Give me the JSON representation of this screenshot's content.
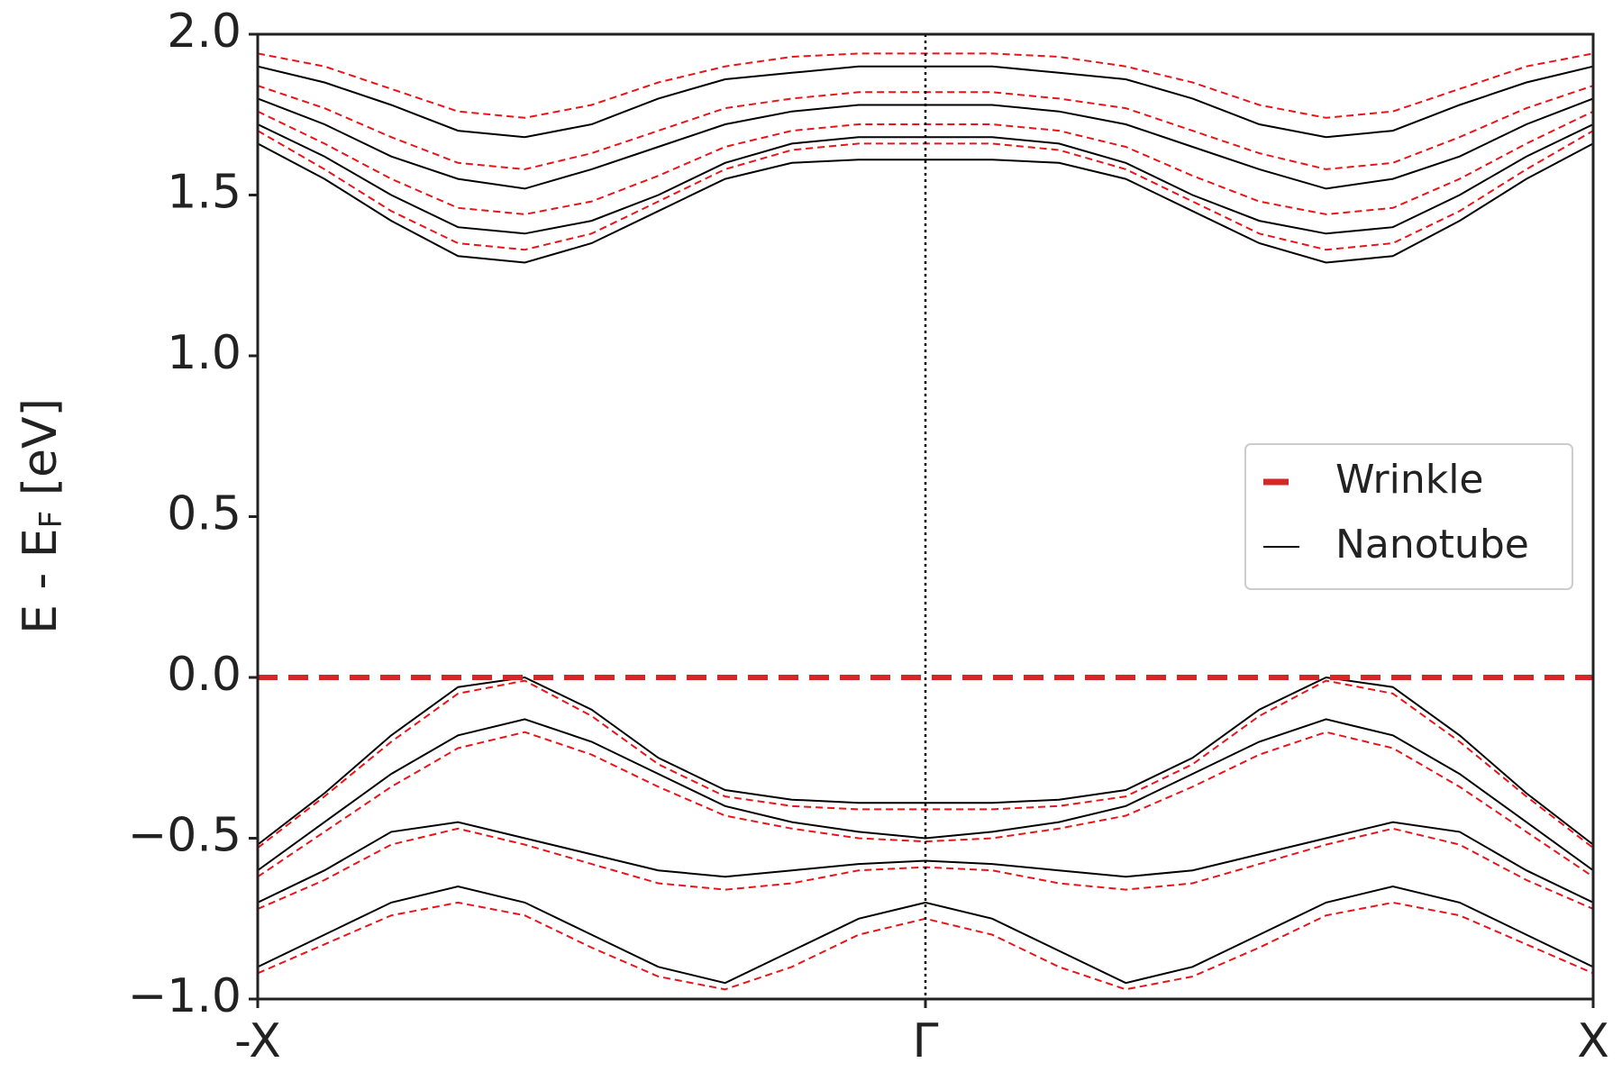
{
  "chart_data": {
    "type": "band",
    "ylabel": [
      "E - E",
      "F",
      " [eV]"
    ],
    "x": [
      -1,
      -0.9,
      -0.8,
      -0.7,
      -0.6,
      -0.5,
      -0.4,
      -0.3,
      -0.2,
      -0.1,
      0,
      0.1,
      0.2,
      0.3,
      0.4,
      0.5,
      0.6,
      0.7,
      0.8,
      0.9,
      1
    ],
    "xlim": [
      -1,
      1
    ],
    "xticks": [
      {
        "value": -1,
        "label": "-X"
      },
      {
        "value": 0,
        "label": "Γ"
      },
      {
        "value": 1,
        "label": "X"
      }
    ],
    "ylim": [
      -1,
      2
    ],
    "yticks": [
      {
        "value": -1,
        "label": "−1.0"
      },
      {
        "value": -0.5,
        "label": "−0.5"
      },
      {
        "value": 0,
        "label": "0.0"
      },
      {
        "value": 0.5,
        "label": "0.5"
      },
      {
        "value": 1,
        "label": "1.0"
      },
      {
        "value": 1.5,
        "label": "1.5"
      },
      {
        "value": 2,
        "label": "2.0"
      }
    ],
    "hlines": [
      {
        "y": 0,
        "color": "#d62728",
        "style": "dashed"
      }
    ],
    "vlines": [
      {
        "x": 0,
        "color": "#000000",
        "style": "dotted"
      }
    ],
    "legend": "center right",
    "series": [
      {
        "name": "Wrinkle",
        "color": "#e8141a",
        "style": "dashed",
        "legend_color": "#d62728",
        "values": [
          [
            1.7,
            1.58,
            1.45,
            1.35,
            1.33,
            1.38,
            1.48,
            1.58,
            1.64,
            1.66,
            1.66,
            1.66,
            1.64,
            1.58,
            1.48,
            1.38,
            1.33,
            1.35,
            1.45,
            1.58,
            1.7
          ],
          [
            1.76,
            1.66,
            1.55,
            1.46,
            1.44,
            1.48,
            1.56,
            1.65,
            1.7,
            1.72,
            1.72,
            1.72,
            1.7,
            1.65,
            1.56,
            1.48,
            1.44,
            1.46,
            1.55,
            1.66,
            1.76
          ],
          [
            1.84,
            1.77,
            1.68,
            1.6,
            1.58,
            1.63,
            1.7,
            1.77,
            1.8,
            1.82,
            1.82,
            1.82,
            1.8,
            1.77,
            1.7,
            1.63,
            1.58,
            1.6,
            1.68,
            1.77,
            1.84
          ],
          [
            1.94,
            1.9,
            1.83,
            1.76,
            1.74,
            1.78,
            1.85,
            1.9,
            1.93,
            1.94,
            1.94,
            1.94,
            1.93,
            1.9,
            1.85,
            1.78,
            1.74,
            1.76,
            1.83,
            1.9,
            1.94
          ],
          [
            -0.53,
            -0.37,
            -0.2,
            -0.05,
            -0.01,
            -0.12,
            -0.27,
            -0.37,
            -0.4,
            -0.41,
            -0.41,
            -0.41,
            -0.4,
            -0.37,
            -0.27,
            -0.12,
            -0.01,
            -0.05,
            -0.2,
            -0.37,
            -0.53
          ],
          [
            -0.62,
            -0.48,
            -0.34,
            -0.22,
            -0.17,
            -0.24,
            -0.34,
            -0.43,
            -0.47,
            -0.5,
            -0.51,
            -0.5,
            -0.47,
            -0.43,
            -0.34,
            -0.24,
            -0.17,
            -0.22,
            -0.34,
            -0.48,
            -0.62
          ],
          [
            -0.72,
            -0.63,
            -0.52,
            -0.47,
            -0.52,
            -0.58,
            -0.64,
            -0.66,
            -0.64,
            -0.6,
            -0.59,
            -0.6,
            -0.64,
            -0.66,
            -0.64,
            -0.58,
            -0.52,
            -0.47,
            -0.52,
            -0.63,
            -0.72
          ],
          [
            -0.92,
            -0.83,
            -0.74,
            -0.7,
            -0.74,
            -0.84,
            -0.93,
            -0.97,
            -0.9,
            -0.8,
            -0.75,
            -0.8,
            -0.9,
            -0.97,
            -0.93,
            -0.84,
            -0.74,
            -0.7,
            -0.74,
            -0.83,
            -0.92
          ]
        ]
      },
      {
        "name": "Nanotube",
        "color": "#000000",
        "style": "solid",
        "legend_color": "#000000",
        "values": [
          [
            1.66,
            1.55,
            1.42,
            1.31,
            1.29,
            1.35,
            1.45,
            1.55,
            1.6,
            1.61,
            1.61,
            1.61,
            1.6,
            1.55,
            1.45,
            1.35,
            1.29,
            1.31,
            1.42,
            1.55,
            1.66
          ],
          [
            1.72,
            1.62,
            1.5,
            1.4,
            1.38,
            1.42,
            1.5,
            1.6,
            1.66,
            1.68,
            1.68,
            1.68,
            1.66,
            1.6,
            1.5,
            1.42,
            1.38,
            1.4,
            1.5,
            1.62,
            1.72
          ],
          [
            1.8,
            1.72,
            1.62,
            1.55,
            1.52,
            1.58,
            1.65,
            1.72,
            1.76,
            1.78,
            1.78,
            1.78,
            1.76,
            1.72,
            1.65,
            1.58,
            1.52,
            1.55,
            1.62,
            1.72,
            1.8
          ],
          [
            1.9,
            1.85,
            1.78,
            1.7,
            1.68,
            1.72,
            1.8,
            1.86,
            1.88,
            1.9,
            1.9,
            1.9,
            1.88,
            1.86,
            1.8,
            1.72,
            1.68,
            1.7,
            1.78,
            1.85,
            1.9
          ],
          [
            -0.52,
            -0.36,
            -0.18,
            -0.03,
            0.0,
            -0.1,
            -0.25,
            -0.35,
            -0.38,
            -0.39,
            -0.39,
            -0.39,
            -0.38,
            -0.35,
            -0.25,
            -0.1,
            0.0,
            -0.03,
            -0.18,
            -0.36,
            -0.52
          ],
          [
            -0.6,
            -0.45,
            -0.3,
            -0.18,
            -0.13,
            -0.2,
            -0.3,
            -0.4,
            -0.45,
            -0.48,
            -0.5,
            -0.48,
            -0.45,
            -0.4,
            -0.3,
            -0.2,
            -0.13,
            -0.18,
            -0.3,
            -0.45,
            -0.6
          ],
          [
            -0.7,
            -0.6,
            -0.48,
            -0.45,
            -0.5,
            -0.55,
            -0.6,
            -0.62,
            -0.6,
            -0.58,
            -0.57,
            -0.58,
            -0.6,
            -0.62,
            -0.6,
            -0.55,
            -0.5,
            -0.45,
            -0.48,
            -0.6,
            -0.7
          ],
          [
            -0.9,
            -0.8,
            -0.7,
            -0.65,
            -0.7,
            -0.8,
            -0.9,
            -0.95,
            -0.85,
            -0.75,
            -0.7,
            -0.75,
            -0.85,
            -0.95,
            -0.9,
            -0.8,
            -0.7,
            -0.65,
            -0.7,
            -0.8,
            -0.9
          ]
        ]
      }
    ]
  }
}
